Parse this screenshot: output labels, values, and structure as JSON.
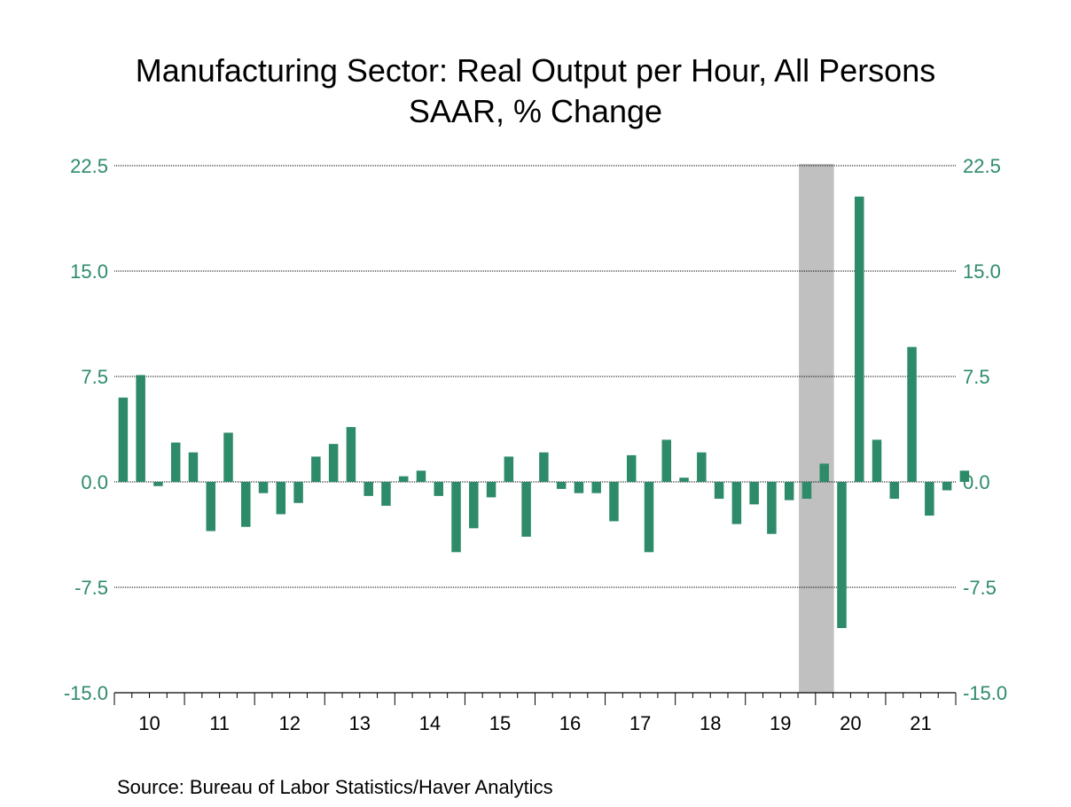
{
  "title_line1": "Manufacturing Sector: Real Output per Hour, All Persons",
  "title_line2": "SAAR, % Change",
  "source": "Source:  Bureau of Labor Statistics/Haver Analytics",
  "colors": {
    "bar": "#2e8b69",
    "tick_text": "#2e8b69",
    "recession": "#c0c0c0",
    "grid": "#000000"
  },
  "chart_data": {
    "type": "bar",
    "title": "Manufacturing Sector: Real Output per Hour, All Persons",
    "subtitle": "SAAR, % Change",
    "frequency": "quarterly",
    "start": "2010-Q1",
    "ylim": [
      -15.0,
      22.5
    ],
    "yticks": [
      "22.5",
      "15.0",
      "7.5",
      "0.0",
      "-7.5",
      "-15.0"
    ],
    "grid": "horizontal dotted",
    "year_labels": [
      "10",
      "11",
      "12",
      "13",
      "14",
      "15",
      "16",
      "17",
      "18",
      "19",
      "20",
      "21"
    ],
    "recession_shading": {
      "start": "2019-Q4",
      "end": "2020-Q2"
    },
    "values": [
      6.0,
      7.6,
      -0.3,
      2.8,
      2.1,
      -3.5,
      3.5,
      -3.2,
      -0.8,
      -2.3,
      -1.5,
      1.8,
      2.7,
      3.9,
      -1.0,
      -1.7,
      0.4,
      0.8,
      -1.0,
      -5.0,
      -3.3,
      -1.1,
      1.8,
      -3.9,
      2.1,
      -0.5,
      -0.8,
      -0.8,
      -2.8,
      1.9,
      -5.0,
      3.0,
      0.3,
      2.1,
      -1.2,
      -3.0,
      -1.6,
      -3.7,
      -1.3,
      -1.2,
      1.3,
      -10.4,
      20.3,
      3.0,
      -1.2,
      9.6,
      -2.4,
      -0.6,
      0.8
    ]
  }
}
